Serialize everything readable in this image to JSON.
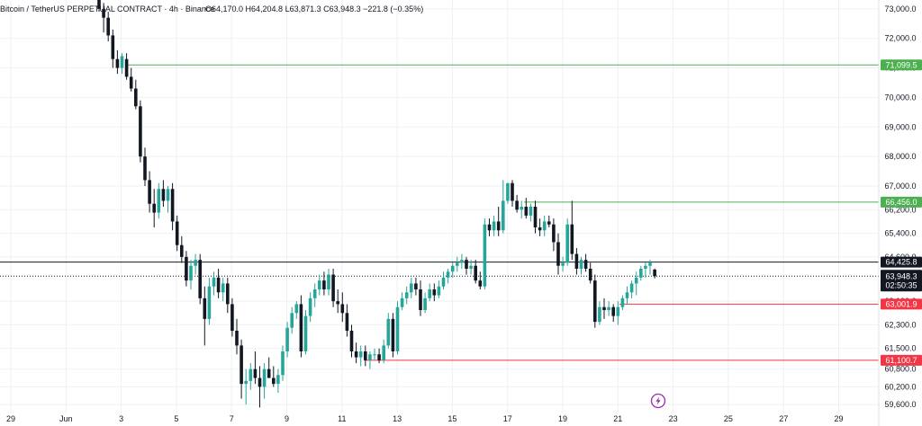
{
  "header": {
    "symbol": "Bitcoin / TetherUS PERPETUAL CONTRACT · 4h · Binance",
    "ohlc": "O64,170.0  H64,204.8  L63,871.3  C63,948.3  −221.8 (−0.35%)"
  },
  "colors": {
    "up": "#26a69a",
    "down": "#131722",
    "resistance": "#4caf50",
    "support": "#f23645",
    "grid": "#eef0f3",
    "price_line": "#131722"
  },
  "icons": {
    "flash": "lightning-icon"
  },
  "chart_data": {
    "type": "candlestick",
    "interval": "4h",
    "ylim": [
      59300,
      73300
    ],
    "y_ticks": [
      {
        "value": 73000,
        "label": "73,000.0"
      },
      {
        "value": 72000,
        "label": "72,000.0"
      },
      {
        "value": 71000,
        "label": "71,000.0"
      },
      {
        "value": 70000,
        "label": "70,000.0"
      },
      {
        "value": 69000,
        "label": "69,000.0"
      },
      {
        "value": 68000,
        "label": "68,000.0"
      },
      {
        "value": 67000,
        "label": "67,000.0"
      },
      {
        "value": 66200,
        "label": "66,200.0"
      },
      {
        "value": 65400,
        "label": "65,400.0"
      },
      {
        "value": 64600,
        "label": "64,600.0"
      },
      {
        "value": 63100,
        "label": "63,100.0"
      },
      {
        "value": 62300,
        "label": "62,300.0"
      },
      {
        "value": 61500,
        "label": "61,500.0"
      },
      {
        "value": 60800,
        "label": "60,800.0"
      },
      {
        "value": 60200,
        "label": "60,200.0"
      },
      {
        "value": 59600,
        "label": "59,600.0"
      }
    ],
    "x_ticks": [
      "29",
      "Jun",
      "3",
      "5",
      "7",
      "9",
      "11",
      "13",
      "15",
      "17",
      "19",
      "21",
      "23",
      "25",
      "27",
      "29"
    ],
    "levels": [
      {
        "value": 71099.5,
        "label": "71,099.5",
        "kind": "resistance"
      },
      {
        "value": 66456.0,
        "label": "66,456.0",
        "kind": "resistance"
      },
      {
        "value": 64425.8,
        "label": "64,425.8",
        "kind": "black"
      },
      {
        "value": 63001.9,
        "label": "63,001.9",
        "kind": "support"
      },
      {
        "value": 61100.7,
        "label": "61,100.7",
        "kind": "support"
      }
    ],
    "current_price": {
      "value": 63948.3,
      "label": "63,948.3",
      "countdown": "02:50:35"
    },
    "candles": [
      {
        "o": 73300,
        "h": 73700,
        "l": 72900,
        "c": 73000
      },
      {
        "o": 73000,
        "h": 73200,
        "l": 72200,
        "c": 72700
      },
      {
        "o": 72700,
        "h": 72900,
        "l": 71900,
        "c": 72100
      },
      {
        "o": 72100,
        "h": 72300,
        "l": 71000,
        "c": 71300
      },
      {
        "o": 71300,
        "h": 71600,
        "l": 70800,
        "c": 71000
      },
      {
        "o": 71000,
        "h": 71500,
        "l": 70800,
        "c": 71400
      },
      {
        "o": 71300,
        "h": 71500,
        "l": 70600,
        "c": 70700
      },
      {
        "o": 70700,
        "h": 71000,
        "l": 70200,
        "c": 70300
      },
      {
        "o": 70300,
        "h": 70600,
        "l": 69600,
        "c": 69700
      },
      {
        "o": 69700,
        "h": 69900,
        "l": 67800,
        "c": 68000
      },
      {
        "o": 68000,
        "h": 68300,
        "l": 67000,
        "c": 67200
      },
      {
        "o": 67200,
        "h": 67500,
        "l": 66100,
        "c": 66400
      },
      {
        "o": 66400,
        "h": 66900,
        "l": 65600,
        "c": 66100
      },
      {
        "o": 66100,
        "h": 67100,
        "l": 65900,
        "c": 66900
      },
      {
        "o": 66900,
        "h": 67200,
        "l": 66300,
        "c": 66500
      },
      {
        "o": 66500,
        "h": 67000,
        "l": 66100,
        "c": 66900
      },
      {
        "o": 66900,
        "h": 67100,
        "l": 65500,
        "c": 65800
      },
      {
        "o": 65800,
        "h": 66000,
        "l": 64800,
        "c": 65000
      },
      {
        "o": 65000,
        "h": 65300,
        "l": 64400,
        "c": 64600
      },
      {
        "o": 64600,
        "h": 64800,
        "l": 63600,
        "c": 63800
      },
      {
        "o": 63800,
        "h": 64500,
        "l": 63500,
        "c": 64300
      },
      {
        "o": 64300,
        "h": 64700,
        "l": 64000,
        "c": 64500
      },
      {
        "o": 64500,
        "h": 64700,
        "l": 63000,
        "c": 63200
      },
      {
        "o": 63200,
        "h": 63600,
        "l": 61600,
        "c": 62500
      },
      {
        "o": 62500,
        "h": 63900,
        "l": 62300,
        "c": 63600
      },
      {
        "o": 63600,
        "h": 64100,
        "l": 63300,
        "c": 63900
      },
      {
        "o": 63900,
        "h": 64200,
        "l": 63200,
        "c": 63400
      },
      {
        "o": 63400,
        "h": 63900,
        "l": 63100,
        "c": 63700
      },
      {
        "o": 63700,
        "h": 63900,
        "l": 62700,
        "c": 63000
      },
      {
        "o": 63000,
        "h": 63200,
        "l": 61900,
        "c": 62100
      },
      {
        "o": 62100,
        "h": 62500,
        "l": 61300,
        "c": 61600
      },
      {
        "o": 61600,
        "h": 61800,
        "l": 59800,
        "c": 60300
      },
      {
        "o": 60300,
        "h": 60800,
        "l": 59600,
        "c": 60400
      },
      {
        "o": 60400,
        "h": 61000,
        "l": 60100,
        "c": 60800
      },
      {
        "o": 60800,
        "h": 61400,
        "l": 60300,
        "c": 60500
      },
      {
        "o": 60500,
        "h": 60900,
        "l": 59500,
        "c": 60200
      },
      {
        "o": 60200,
        "h": 61000,
        "l": 59800,
        "c": 60800
      },
      {
        "o": 60800,
        "h": 61200,
        "l": 60500,
        "c": 60500
      },
      {
        "o": 60500,
        "h": 60900,
        "l": 60200,
        "c": 60300
      },
      {
        "o": 60300,
        "h": 60800,
        "l": 60000,
        "c": 60600
      },
      {
        "o": 60600,
        "h": 61600,
        "l": 60400,
        "c": 61400
      },
      {
        "o": 61400,
        "h": 62400,
        "l": 61200,
        "c": 62200
      },
      {
        "o": 62200,
        "h": 62900,
        "l": 62000,
        "c": 62700
      },
      {
        "o": 62700,
        "h": 63100,
        "l": 62500,
        "c": 63000
      },
      {
        "o": 63000,
        "h": 63300,
        "l": 61200,
        "c": 61400
      },
      {
        "o": 61400,
        "h": 62800,
        "l": 61300,
        "c": 62600
      },
      {
        "o": 62600,
        "h": 63400,
        "l": 62400,
        "c": 63200
      },
      {
        "o": 63200,
        "h": 63700,
        "l": 62900,
        "c": 63500
      },
      {
        "o": 63500,
        "h": 64000,
        "l": 63300,
        "c": 63800
      },
      {
        "o": 63800,
        "h": 64100,
        "l": 63300,
        "c": 63500
      },
      {
        "o": 63500,
        "h": 64200,
        "l": 63300,
        "c": 64000
      },
      {
        "o": 64000,
        "h": 64200,
        "l": 62900,
        "c": 63100
      },
      {
        "o": 63100,
        "h": 63500,
        "l": 62700,
        "c": 63000
      },
      {
        "o": 63000,
        "h": 63400,
        "l": 62400,
        "c": 62700
      },
      {
        "o": 62700,
        "h": 63000,
        "l": 61900,
        "c": 62100
      },
      {
        "o": 62100,
        "h": 62300,
        "l": 61200,
        "c": 61400
      },
      {
        "o": 61400,
        "h": 61700,
        "l": 61000,
        "c": 61200
      },
      {
        "o": 61200,
        "h": 61600,
        "l": 60900,
        "c": 61400
      },
      {
        "o": 61400,
        "h": 61600,
        "l": 60900,
        "c": 61100
      },
      {
        "o": 61100,
        "h": 61400,
        "l": 60800,
        "c": 61300
      },
      {
        "o": 61300,
        "h": 61500,
        "l": 61100,
        "c": 61300
      },
      {
        "o": 61300,
        "h": 61500,
        "l": 61000,
        "c": 61100
      },
      {
        "o": 61100,
        "h": 61800,
        "l": 61000,
        "c": 61600
      },
      {
        "o": 61600,
        "h": 62700,
        "l": 61500,
        "c": 62500
      },
      {
        "o": 62500,
        "h": 62700,
        "l": 61200,
        "c": 61400
      },
      {
        "o": 61400,
        "h": 63100,
        "l": 61300,
        "c": 62900
      },
      {
        "o": 62900,
        "h": 63400,
        "l": 62800,
        "c": 63200
      },
      {
        "o": 63200,
        "h": 63600,
        "l": 63000,
        "c": 63400
      },
      {
        "o": 63400,
        "h": 63900,
        "l": 63200,
        "c": 63700
      },
      {
        "o": 63700,
        "h": 63900,
        "l": 63300,
        "c": 63500
      },
      {
        "o": 63500,
        "h": 63800,
        "l": 62600,
        "c": 62800
      },
      {
        "o": 62800,
        "h": 63400,
        "l": 62700,
        "c": 63200
      },
      {
        "o": 63200,
        "h": 63700,
        "l": 63100,
        "c": 63500
      },
      {
        "o": 63500,
        "h": 63700,
        "l": 63100,
        "c": 63300
      },
      {
        "o": 63300,
        "h": 63800,
        "l": 63200,
        "c": 63600
      },
      {
        "o": 63600,
        "h": 64100,
        "l": 63500,
        "c": 63900
      },
      {
        "o": 63900,
        "h": 64200,
        "l": 63700,
        "c": 64100
      },
      {
        "o": 64100,
        "h": 64400,
        "l": 63900,
        "c": 64300
      },
      {
        "o": 64300,
        "h": 64600,
        "l": 64100,
        "c": 64400
      },
      {
        "o": 64400,
        "h": 64700,
        "l": 64200,
        "c": 64500
      },
      {
        "o": 64500,
        "h": 64600,
        "l": 64000,
        "c": 64200
      },
      {
        "o": 64200,
        "h": 64500,
        "l": 64000,
        "c": 64300
      },
      {
        "o": 64300,
        "h": 64500,
        "l": 63700,
        "c": 63800
      },
      {
        "o": 63800,
        "h": 64100,
        "l": 63500,
        "c": 63600
      },
      {
        "o": 63600,
        "h": 65900,
        "l": 63500,
        "c": 65700
      },
      {
        "o": 65700,
        "h": 65900,
        "l": 65300,
        "c": 65500
      },
      {
        "o": 65500,
        "h": 66000,
        "l": 65300,
        "c": 65800
      },
      {
        "o": 65800,
        "h": 66300,
        "l": 65300,
        "c": 65500
      },
      {
        "o": 65500,
        "h": 67200,
        "l": 65400,
        "c": 66500
      },
      {
        "o": 66500,
        "h": 67100,
        "l": 66400,
        "c": 67100
      },
      {
        "o": 67100,
        "h": 67200,
        "l": 66300,
        "c": 66500
      },
      {
        "o": 66500,
        "h": 66700,
        "l": 66100,
        "c": 66200
      },
      {
        "o": 66200,
        "h": 66500,
        "l": 65900,
        "c": 66300
      },
      {
        "o": 66300,
        "h": 66600,
        "l": 65900,
        "c": 66000
      },
      {
        "o": 66000,
        "h": 66400,
        "l": 65800,
        "c": 66300
      },
      {
        "o": 66300,
        "h": 66500,
        "l": 65400,
        "c": 65600
      },
      {
        "o": 65600,
        "h": 65900,
        "l": 65300,
        "c": 65500
      },
      {
        "o": 65500,
        "h": 66000,
        "l": 65300,
        "c": 65800
      },
      {
        "o": 65800,
        "h": 66000,
        "l": 65600,
        "c": 65700
      },
      {
        "o": 65700,
        "h": 65900,
        "l": 64800,
        "c": 65100
      },
      {
        "o": 65100,
        "h": 65400,
        "l": 64000,
        "c": 64300
      },
      {
        "o": 64300,
        "h": 64600,
        "l": 64100,
        "c": 64400
      },
      {
        "o": 64400,
        "h": 65900,
        "l": 64300,
        "c": 65700
      },
      {
        "o": 65700,
        "h": 66500,
        "l": 64500,
        "c": 64700
      },
      {
        "o": 64700,
        "h": 64900,
        "l": 64000,
        "c": 64200
      },
      {
        "o": 64200,
        "h": 64600,
        "l": 64000,
        "c": 64500
      },
      {
        "o": 64500,
        "h": 64700,
        "l": 64100,
        "c": 64200
      },
      {
        "o": 64200,
        "h": 64400,
        "l": 63700,
        "c": 63800
      },
      {
        "o": 63800,
        "h": 64000,
        "l": 62200,
        "c": 62400
      },
      {
        "o": 62400,
        "h": 63100,
        "l": 62300,
        "c": 62900
      },
      {
        "o": 62900,
        "h": 63200,
        "l": 62500,
        "c": 62800
      },
      {
        "o": 62800,
        "h": 63100,
        "l": 62600,
        "c": 62900
      },
      {
        "o": 62900,
        "h": 63000,
        "l": 62400,
        "c": 62600
      },
      {
        "o": 62600,
        "h": 63100,
        "l": 62300,
        "c": 62900
      },
      {
        "o": 62900,
        "h": 63300,
        "l": 62800,
        "c": 63200
      },
      {
        "o": 63200,
        "h": 63600,
        "l": 63000,
        "c": 63400
      },
      {
        "o": 63400,
        "h": 63800,
        "l": 63200,
        "c": 63700
      },
      {
        "o": 63700,
        "h": 64100,
        "l": 63300,
        "c": 63900
      },
      {
        "o": 63900,
        "h": 64300,
        "l": 63800,
        "c": 64200
      },
      {
        "o": 64200,
        "h": 64400,
        "l": 63900,
        "c": 64300
      },
      {
        "o": 64300,
        "h": 64500,
        "l": 64000,
        "c": 64400
      },
      {
        "o": 64170,
        "h": 64205,
        "l": 63871,
        "c": 63948
      }
    ]
  }
}
